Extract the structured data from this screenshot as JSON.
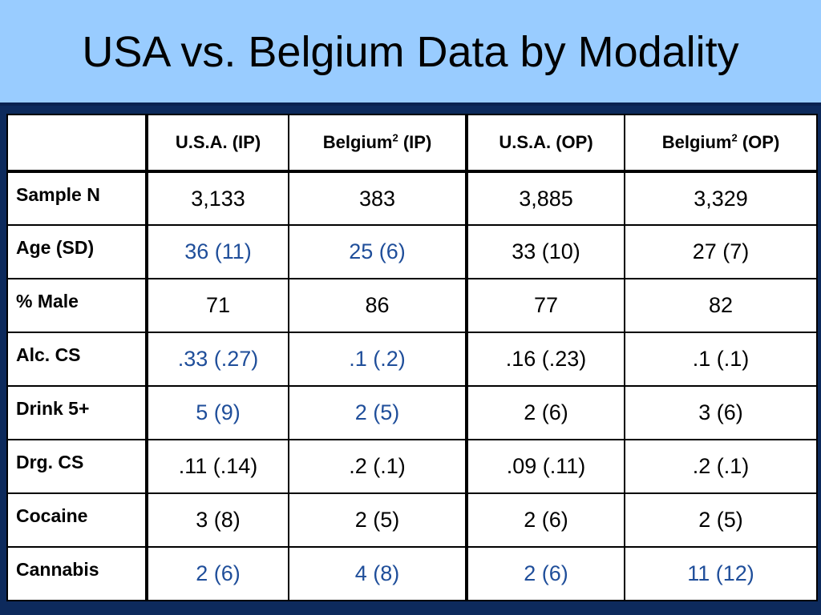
{
  "title": "USA vs. Belgium Data by Modality",
  "columns": [
    {
      "pre": "",
      "sup": "",
      "post": ""
    },
    {
      "pre": "U.S.A. (IP)",
      "sup": "",
      "post": ""
    },
    {
      "pre": "Belgium",
      "sup": "2",
      "post": " (IP)"
    },
    {
      "pre": "U.S.A. (OP)",
      "sup": "",
      "post": ""
    },
    {
      "pre": "Belgium",
      "sup": "2",
      "post": " (OP)"
    }
  ],
  "rows": [
    {
      "label": "Sample N",
      "cells": [
        {
          "v": "3,133",
          "hl": false
        },
        {
          "v": "383",
          "hl": false
        },
        {
          "v": "3,885",
          "hl": false
        },
        {
          "v": "3,329",
          "hl": false
        }
      ]
    },
    {
      "label": "Age (SD)",
      "cells": [
        {
          "v": "36 (11)",
          "hl": true
        },
        {
          "v": "25 (6)",
          "hl": true
        },
        {
          "v": "33 (10)",
          "hl": false
        },
        {
          "v": "27 (7)",
          "hl": false
        }
      ]
    },
    {
      "label": "% Male",
      "cells": [
        {
          "v": "71",
          "hl": false
        },
        {
          "v": "86",
          "hl": false
        },
        {
          "v": "77",
          "hl": false
        },
        {
          "v": "82",
          "hl": false
        }
      ]
    },
    {
      "label": "Alc. CS",
      "cells": [
        {
          "v": ".33 (.27)",
          "hl": true
        },
        {
          "v": ".1 (.2)",
          "hl": true
        },
        {
          "v": ".16 (.23)",
          "hl": false
        },
        {
          "v": ".1 (.1)",
          "hl": false
        }
      ]
    },
    {
      "label": "Drink 5+",
      "cells": [
        {
          "v": "5 (9)",
          "hl": true
        },
        {
          "v": "2 (5)",
          "hl": true
        },
        {
          "v": "2 (6)",
          "hl": false
        },
        {
          "v": "3 (6)",
          "hl": false
        }
      ]
    },
    {
      "label": "Drg. CS",
      "cells": [
        {
          "v": ".11 (.14)",
          "hl": false
        },
        {
          "v": ".2 (.1)",
          "hl": false
        },
        {
          "v": ".09 (.11)",
          "hl": false
        },
        {
          "v": ".2 (.1)",
          "hl": false
        }
      ]
    },
    {
      "label": "Cocaine",
      "cells": [
        {
          "v": "3 (8)",
          "hl": false
        },
        {
          "v": "2 (5)",
          "hl": false
        },
        {
          "v": "2 (6)",
          "hl": false
        },
        {
          "v": "2 (5)",
          "hl": false
        }
      ]
    },
    {
      "label": "Cannabis",
      "cells": [
        {
          "v": "2 (6)",
          "hl": true
        },
        {
          "v": "4 (8)",
          "hl": true
        },
        {
          "v": "2 (6)",
          "hl": true
        },
        {
          "v": "11 (12)",
          "hl": true
        }
      ]
    }
  ],
  "colors": {
    "title_bg": "#99ccff",
    "slide_bg": "#0d2a5c",
    "highlight_text": "#1f4e9a",
    "normal_text": "#000000"
  }
}
